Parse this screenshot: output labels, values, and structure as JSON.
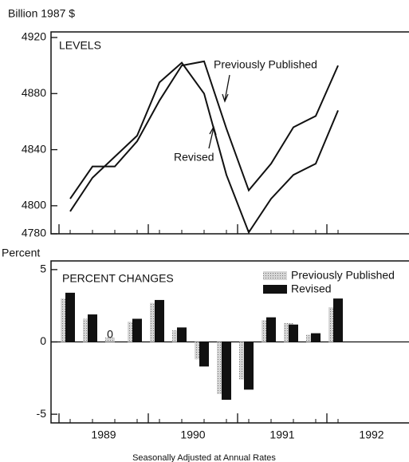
{
  "chart_data": [
    {
      "type": "line",
      "unit_label": "Billion 1987 $",
      "title": "LEVELS",
      "categories": [
        null,
        null,
        null,
        null,
        null,
        null,
        null,
        null,
        null,
        null,
        null,
        null,
        null
      ],
      "series": [
        {
          "name": "Previously Published",
          "color": "#111111",
          "values": [
            4805,
            4828,
            4828,
            4846,
            4875,
            4900,
            4903,
            4855,
            4811,
            4830,
            4856,
            4864,
            4900
          ]
        },
        {
          "name": "Revised",
          "color": "#111111",
          "values": [
            4796,
            4820,
            4835,
            4850,
            4888,
            4902,
            4880,
            4822,
            4781,
            4805,
            4822,
            4830,
            4868
          ]
        }
      ],
      "ylim": [
        4780,
        4920
      ],
      "yticks": [
        4780,
        4800,
        4840,
        4880,
        4920
      ]
    },
    {
      "type": "bar",
      "unit_label": "Percent",
      "title": "PERCENT CHANGES",
      "categories": [
        null,
        null,
        null,
        null,
        null,
        null,
        null,
        null,
        null,
        null,
        null,
        null,
        null
      ],
      "series": [
        {
          "name": "Previously Published",
          "color": "#b8b8b8",
          "values": [
            3.0,
            1.6,
            0.3,
            1.4,
            2.7,
            0.8,
            -1.2,
            -3.6,
            -2.6,
            1.5,
            1.3,
            0.5,
            2.4
          ]
        },
        {
          "name": "Revised",
          "color": "#111111",
          "values": [
            3.4,
            1.9,
            0,
            1.6,
            2.9,
            1.0,
            -1.7,
            -4.0,
            -3.3,
            1.7,
            1.2,
            0.6,
            3.0
          ]
        }
      ],
      "annotation": "0",
      "ylim": [
        -5.6,
        5.6
      ],
      "yticks": [
        -5,
        0,
        5
      ],
      "year_labels": [
        "1989",
        "1990",
        "1991",
        "1992"
      ],
      "footnote": "Seasonally Adjusted at Annual Rates"
    }
  ]
}
